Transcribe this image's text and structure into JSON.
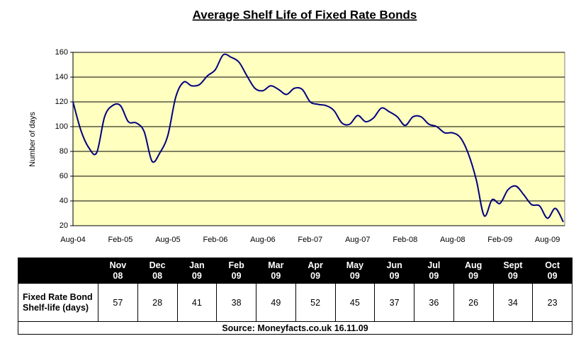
{
  "chart_data": {
    "type": "line",
    "title": "Average Shelf Life of Fixed Rate Bonds",
    "y_label": "Number of days",
    "categories": [
      "Aug-04",
      null,
      null,
      null,
      null,
      null,
      "Feb-05",
      null,
      null,
      null,
      null,
      null,
      "Aug-05",
      null,
      null,
      null,
      null,
      null,
      "Feb-06",
      null,
      null,
      null,
      null,
      null,
      "Aug-06",
      null,
      null,
      null,
      null,
      null,
      "Feb-07",
      null,
      null,
      null,
      null,
      null,
      "Aug-07",
      null,
      null,
      null,
      null,
      null,
      "Feb-08",
      null,
      null,
      null,
      null,
      null,
      "Aug-08",
      null,
      null,
      null,
      null,
      null,
      "Feb-09",
      null,
      null,
      null,
      null,
      null,
      "Aug-09",
      null,
      null
    ],
    "values": [
      120,
      97,
      83,
      79,
      108,
      117,
      117,
      104,
      103,
      96,
      72,
      79,
      93,
      124,
      136,
      133,
      134,
      141,
      146,
      158,
      156,
      152,
      141,
      131,
      129,
      133,
      130,
      126,
      131,
      130,
      120,
      118,
      117,
      113,
      103,
      102,
      109,
      104,
      107,
      115,
      112,
      108,
      101,
      108,
      108,
      102,
      100,
      95,
      95,
      91,
      78,
      57,
      28,
      41,
      38,
      49,
      52,
      45,
      37,
      36,
      26,
      34,
      23
    ],
    "color": "#000080",
    "ylim": [
      20,
      160
    ],
    "yticks": [
      20,
      40,
      60,
      80,
      100,
      120,
      140,
      160
    ],
    "grid": true,
    "background": "#ffffc0"
  },
  "table": {
    "header": [
      "Nov 08",
      "Dec 08",
      "Jan 09",
      "Feb 09",
      "Mar 09",
      "Apr 09",
      "May 09",
      "Jun 09",
      "Jul 09",
      "Aug 09",
      "Sept 09",
      "Oct 09"
    ],
    "row_label": "Fixed Rate Bond Shelf-life (days)",
    "values": [
      57,
      28,
      41,
      38,
      49,
      52,
      45,
      37,
      36,
      26,
      34,
      23
    ],
    "source": "Source: Moneyfacts.co.uk  16.11.09"
  }
}
